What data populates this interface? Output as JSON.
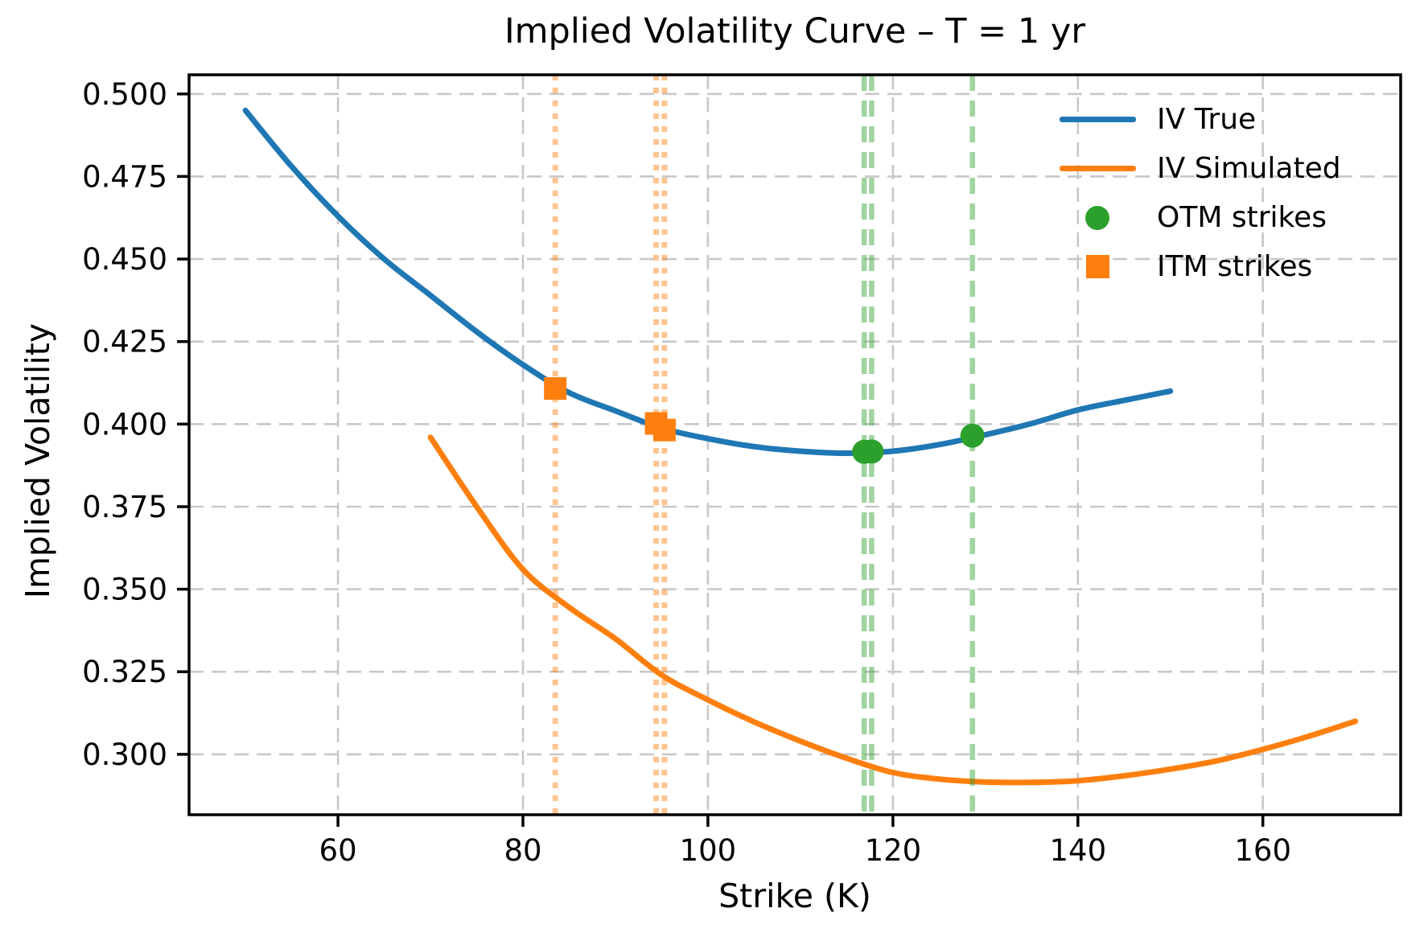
{
  "chart_data": {
    "type": "line",
    "title": "Implied Volatility Curve – T = 1 yr",
    "xlabel": "Strike (K)",
    "ylabel": "Implied Volatility",
    "xlim": [
      43.9,
      174.9
    ],
    "ylim": [
      0.2817,
      0.5058
    ],
    "xticks": [
      60,
      80,
      100,
      120,
      140,
      160
    ],
    "yticks": [
      0.3,
      0.325,
      0.35,
      0.375,
      0.4,
      0.425,
      0.45,
      0.475,
      0.5
    ],
    "grid": true,
    "grid_color": "#c8c8c8",
    "axis_color": "#000000",
    "legend_position": "upper right",
    "series": [
      {
        "name": "IV True",
        "color": "#1f77b4",
        "x": [
          50,
          55,
          60,
          65,
          70,
          75,
          80,
          85,
          90,
          95,
          100,
          105,
          110,
          115,
          120,
          125,
          130,
          135,
          140,
          145,
          150
        ],
        "y": [
          0.495,
          0.478,
          0.463,
          0.45,
          0.439,
          0.428,
          0.418,
          0.4095,
          0.404,
          0.3988,
          0.3956,
          0.3932,
          0.3918,
          0.3912,
          0.3918,
          0.3938,
          0.3968,
          0.4002,
          0.4043,
          0.4072,
          0.41
        ]
      },
      {
        "name": "IV Simulated",
        "color": "#ff7f0e",
        "x": [
          70,
          75,
          80,
          85,
          90,
          95,
          100,
          105,
          110,
          115,
          120,
          125,
          130,
          135,
          140,
          145,
          150,
          155,
          160,
          165,
          170
        ],
        "y": [
          0.396,
          0.375,
          0.356,
          0.3445,
          0.335,
          0.324,
          0.3165,
          0.3098,
          0.304,
          0.2988,
          0.2945,
          0.2925,
          0.2916,
          0.2915,
          0.292,
          0.2935,
          0.2955,
          0.298,
          0.3015,
          0.3055,
          0.31
        ]
      }
    ],
    "markers": [
      {
        "name": "OTM strikes",
        "shape": "circle",
        "color": "#2ca02c",
        "points": [
          [
            116.9,
            0.3916
          ],
          [
            117.7,
            0.3917
          ],
          [
            128.6,
            0.3965
          ]
        ]
      },
      {
        "name": "ITM strikes",
        "shape": "square",
        "color": "#ff7f0e",
        "points": [
          [
            83.5,
            0.4108
          ],
          [
            94.4,
            0.4002
          ],
          [
            95.3,
            0.3982
          ]
        ]
      }
    ],
    "vlines": [
      {
        "x": 83.5,
        "color": "rgba(255,127,14,0.45)",
        "style": "dotted"
      },
      {
        "x": 94.4,
        "color": "rgba(255,127,14,0.45)",
        "style": "dotted"
      },
      {
        "x": 95.3,
        "color": "rgba(255,127,14,0.45)",
        "style": "dotted"
      },
      {
        "x": 116.9,
        "color": "rgba(44,160,44,0.45)",
        "style": "dashed"
      },
      {
        "x": 117.7,
        "color": "rgba(44,160,44,0.45)",
        "style": "dashed"
      },
      {
        "x": 128.6,
        "color": "rgba(44,160,44,0.45)",
        "style": "dashed"
      }
    ]
  }
}
